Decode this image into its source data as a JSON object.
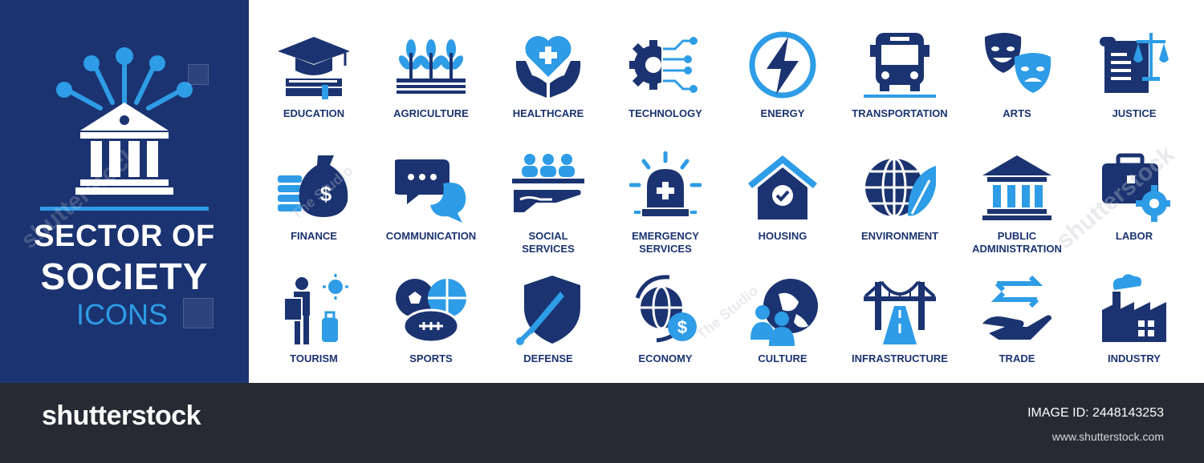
{
  "hero": {
    "line1": "SECTOR OF",
    "line2": "SOCIETY",
    "line3": "ICONS"
  },
  "colors": {
    "navy": "#1b3370",
    "blue": "#2e9ce6",
    "footer": "#262b33"
  },
  "icons": [
    {
      "label": "EDUCATION",
      "icon": "graduation-cap-books-icon"
    },
    {
      "label": "AGRICULTURE",
      "icon": "wheat-field-icon"
    },
    {
      "label": "HEALTHCARE",
      "icon": "heart-hands-icon"
    },
    {
      "label": "TECHNOLOGY",
      "icon": "gear-circuit-icon"
    },
    {
      "label": "ENERGY",
      "icon": "lightning-icon"
    },
    {
      "label": "TRANSPORTATION",
      "icon": "bus-icon"
    },
    {
      "label": "ARTS",
      "icon": "theater-masks-icon"
    },
    {
      "label": "JUSTICE",
      "icon": "scales-scroll-icon"
    },
    {
      "label": "FINANCE",
      "icon": "money-bag-coins-icon"
    },
    {
      "label": "COMMUNICATION",
      "icon": "chat-bubbles-icon"
    },
    {
      "label": "SOCIAL\nSERVICES",
      "icon": "people-hand-icon"
    },
    {
      "label": "EMERGENCY\nSERVICES",
      "icon": "siren-icon"
    },
    {
      "label": "HOUSING",
      "icon": "house-check-icon"
    },
    {
      "label": "ENVIRONMENT",
      "icon": "globe-leaf-icon"
    },
    {
      "label": "PUBLIC\nADMINISTRATION",
      "icon": "government-building-icon"
    },
    {
      "label": "LABOR",
      "icon": "briefcase-gear-icon"
    },
    {
      "label": "TOURISM",
      "icon": "tourist-icon"
    },
    {
      "label": "SPORTS",
      "icon": "sports-balls-icon"
    },
    {
      "label": "DEFENSE",
      "icon": "shield-sword-icon"
    },
    {
      "label": "ECONOMY",
      "icon": "globe-dollar-icon"
    },
    {
      "label": "CULTURE",
      "icon": "people-globe-icon"
    },
    {
      "label": "INFRASTRUCTURE",
      "icon": "bridge-road-icon"
    },
    {
      "label": "TRADE",
      "icon": "hand-arrows-icon"
    },
    {
      "label": "INDUSTRY",
      "icon": "factory-icon"
    }
  ],
  "footer": {
    "logo": "shutterstock",
    "image_id": "IMAGE ID: 2448143253",
    "site": "www.shutterstock.com"
  },
  "watermarks": [
    "shutterstock",
    "The Studio",
    "The Studio",
    "The Studio",
    "shutterstock"
  ]
}
